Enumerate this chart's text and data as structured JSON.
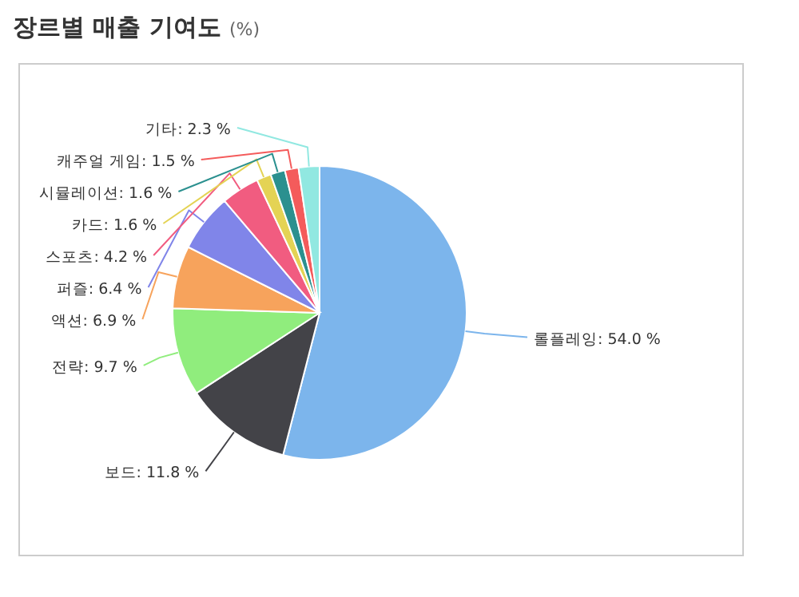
{
  "chart_data": {
    "type": "pie",
    "title": "장르별 매출 기여도",
    "subtitle": "(%)",
    "categories": [
      "롤플레잉",
      "보드",
      "전략",
      "액션",
      "퍼즐",
      "스포츠",
      "카드",
      "시뮬레이션",
      "캐주얼 게임",
      "기타"
    ],
    "values": [
      54.0,
      11.8,
      9.7,
      6.9,
      6.4,
      4.2,
      1.6,
      1.6,
      1.5,
      2.3
    ],
    "value_labels": [
      "54.0 %",
      "11.8 %",
      "9.7 %",
      "6.9 %",
      "6.4 %",
      "4.2 %",
      "1.6 %",
      "1.6 %",
      "1.5 %",
      "2.3 %"
    ],
    "colors": [
      "#7cb5ec",
      "#434348",
      "#90ed7d",
      "#f7a35c",
      "#8085e9",
      "#f15c80",
      "#e4d354",
      "#2b908f",
      "#f45b5b",
      "#91e8e1"
    ]
  }
}
